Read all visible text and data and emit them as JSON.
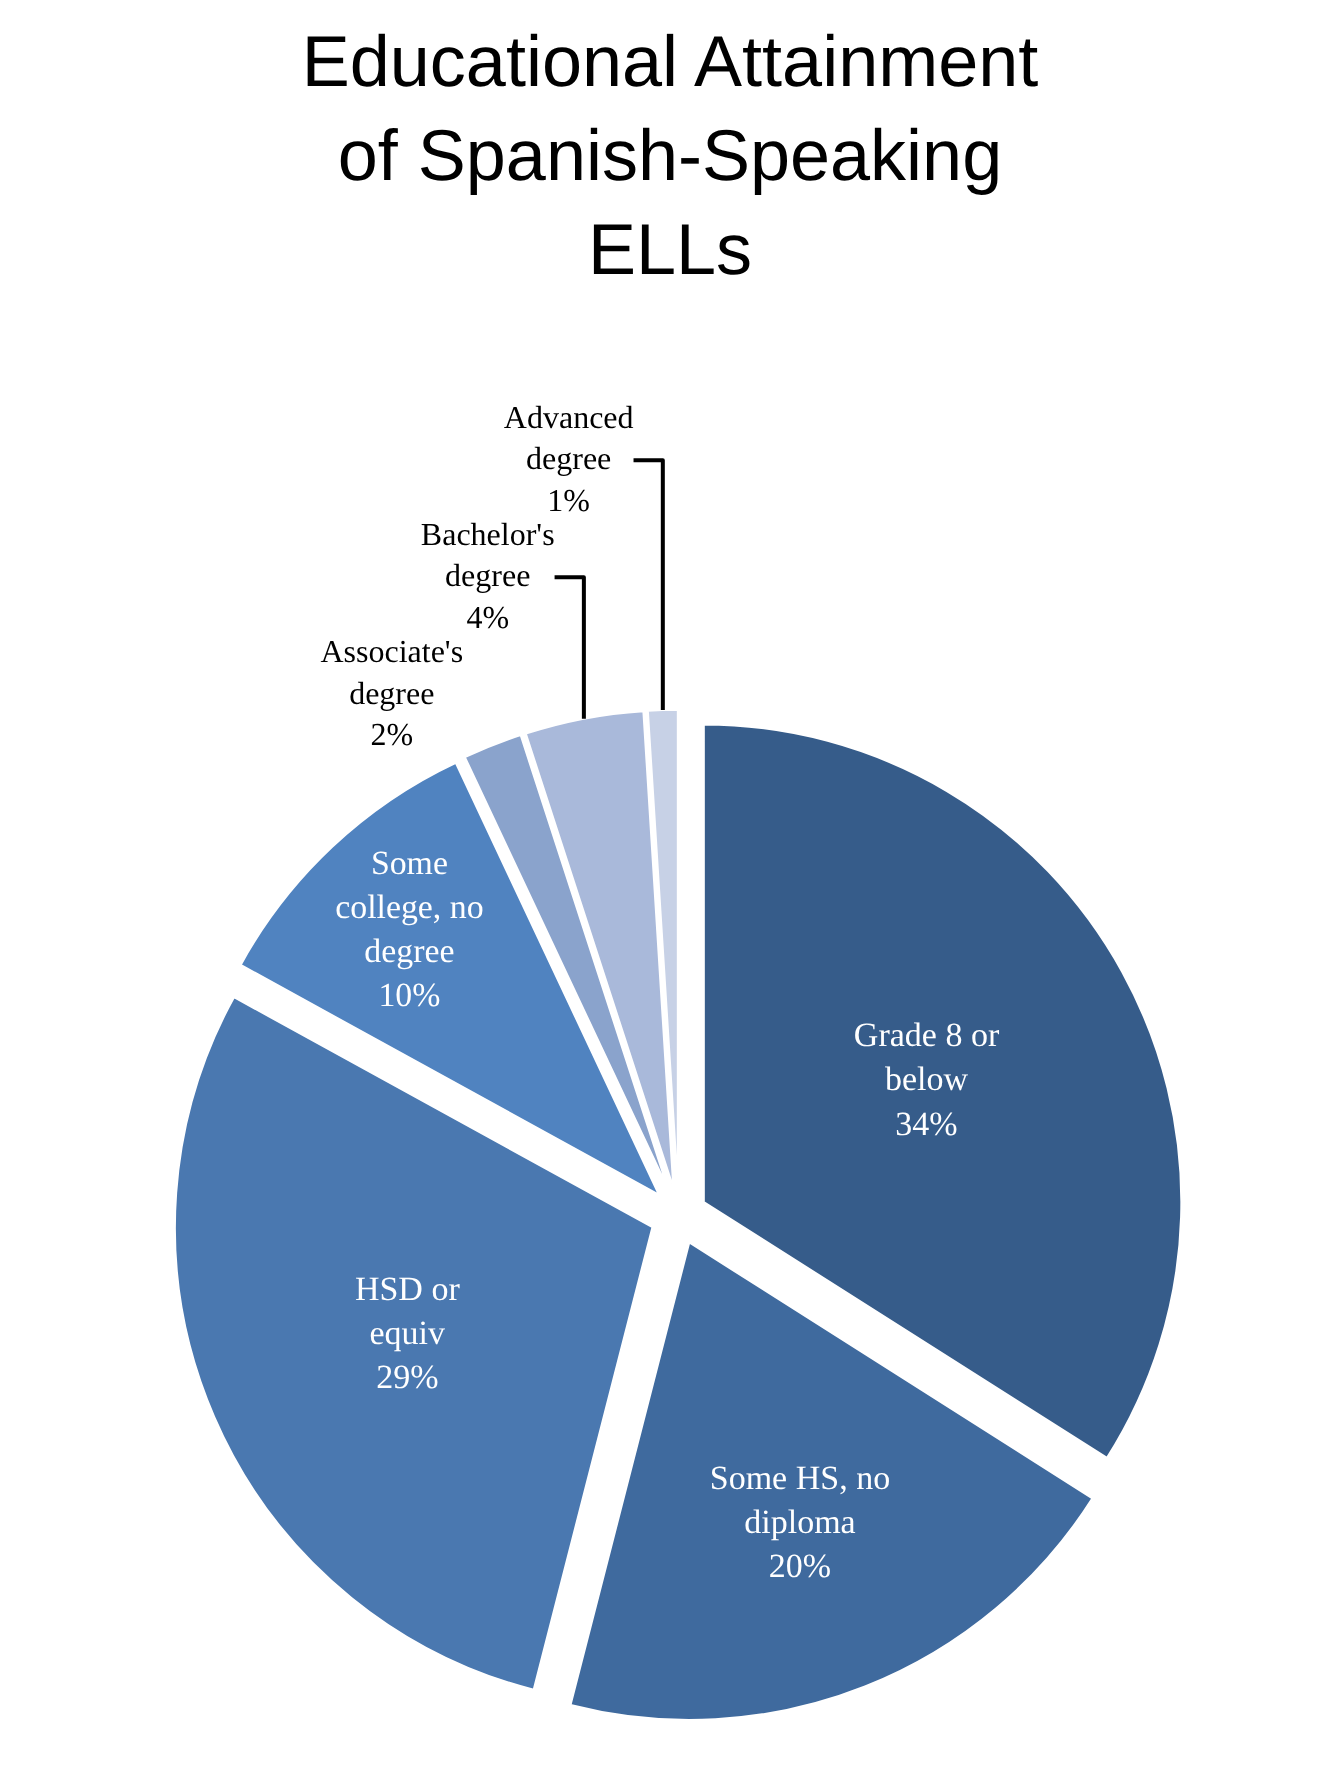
{
  "chart_data": {
    "type": "pie",
    "title": "Educational Attainment of Spanish-Speaking ELLs",
    "categories": [
      "Grade 8 or below",
      "Some HS, no diploma",
      "HSD or equiv",
      "Some college, no degree",
      "Associate's degree",
      "Bachelor's degree",
      "Advanced degree"
    ],
    "values": [
      34,
      20,
      29,
      10,
      2,
      4,
      1
    ],
    "value_labels": [
      "34%",
      "20%",
      "29%",
      "10%",
      "2%",
      "4%",
      "1%"
    ],
    "colors": [
      "#365c8a",
      "#3f6a9e",
      "#4a78b0",
      "#5083c0",
      "#8aa3cc",
      "#a9b9da",
      "#c7d1e6"
    ],
    "legend": false
  }
}
